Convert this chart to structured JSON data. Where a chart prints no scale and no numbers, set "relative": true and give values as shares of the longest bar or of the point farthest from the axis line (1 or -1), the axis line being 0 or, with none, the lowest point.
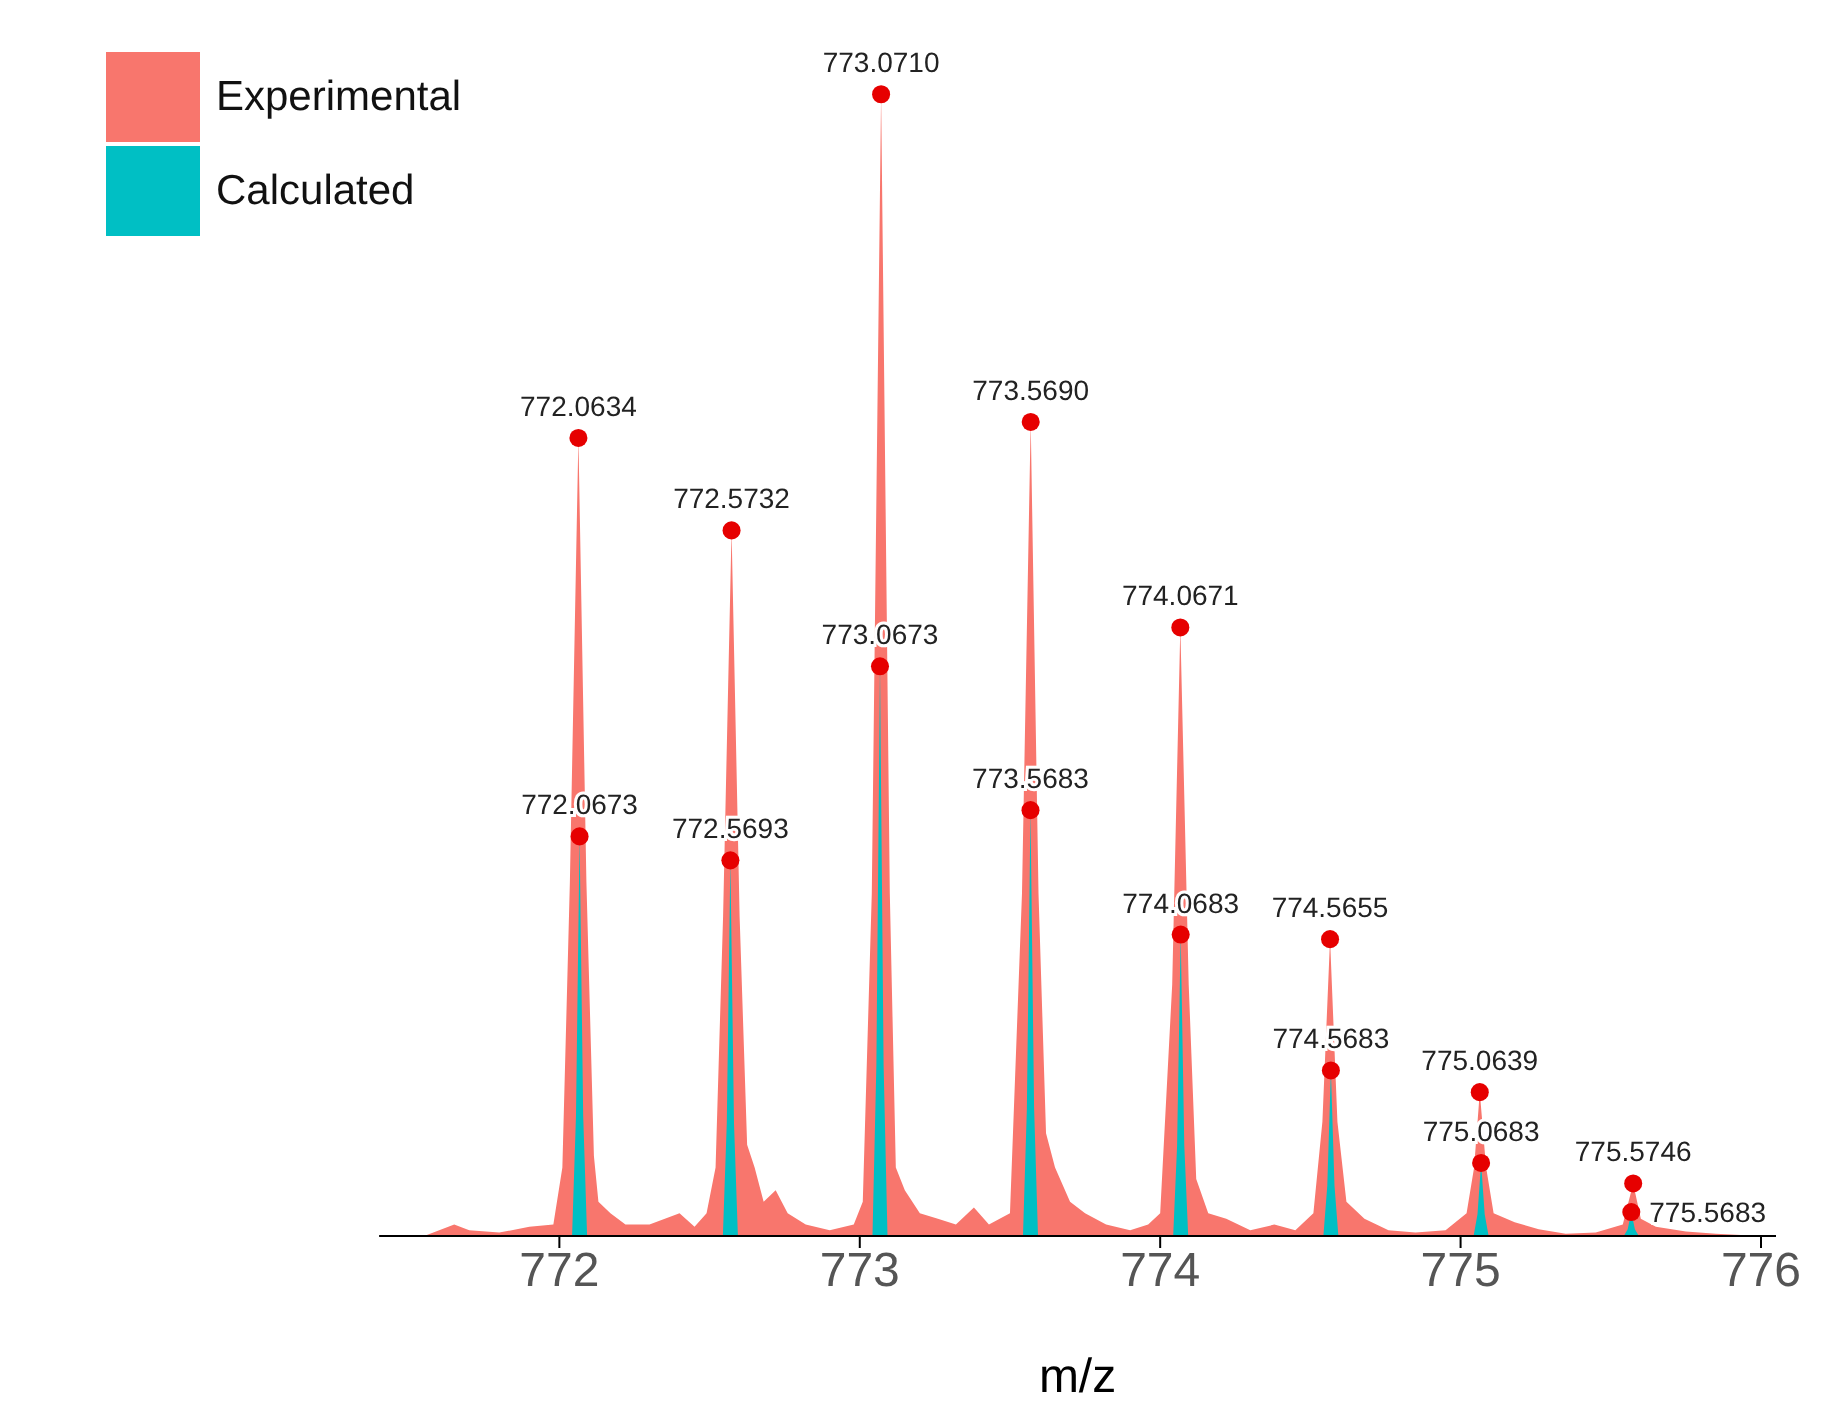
{
  "chart_data": {
    "type": "area",
    "relative": true,
    "xlabel": "m/z",
    "xlim": [
      771.4,
      776.05
    ],
    "xticks": [
      772,
      773,
      774,
      775,
      776
    ],
    "legend": "top left",
    "grid": false,
    "series": [
      {
        "name": "Experimental",
        "color": "#f8766d",
        "x": [
          771.55,
          771.65,
          771.7,
          771.8,
          771.9,
          771.98,
          772.01,
          772.035,
          772.0634,
          772.09,
          772.115,
          772.13,
          772.17,
          772.22,
          772.3,
          772.4,
          772.45,
          772.49,
          772.52,
          772.545,
          772.5732,
          772.6,
          772.625,
          772.65,
          772.68,
          772.72,
          772.76,
          772.82,
          772.9,
          772.98,
          773.01,
          773.04,
          773.071,
          773.1,
          773.12,
          773.15,
          773.2,
          773.26,
          773.32,
          773.38,
          773.43,
          773.5,
          773.54,
          773.569,
          773.595,
          773.62,
          773.65,
          773.7,
          773.75,
          773.82,
          773.9,
          773.96,
          774.0,
          774.04,
          774.0671,
          774.095,
          774.12,
          774.16,
          774.22,
          774.3,
          774.38,
          774.45,
          774.51,
          774.54,
          774.5655,
          774.59,
          774.62,
          774.68,
          774.76,
          774.85,
          774.95,
          775.02,
          775.045,
          775.0639,
          775.085,
          775.11,
          775.18,
          775.26,
          775.35,
          775.45,
          775.54,
          775.5746,
          775.6,
          775.65,
          775.75,
          775.85,
          776.0
        ],
        "values": [
          0,
          0.01,
          0.005,
          0.003,
          0.008,
          0.01,
          0.06,
          0.31,
          0.699,
          0.31,
          0.07,
          0.03,
          0.02,
          0.01,
          0.01,
          0.02,
          0.008,
          0.02,
          0.06,
          0.28,
          0.618,
          0.28,
          0.08,
          0.06,
          0.03,
          0.04,
          0.02,
          0.01,
          0.005,
          0.01,
          0.03,
          0.3,
          1,
          0.3,
          0.06,
          0.04,
          0.02,
          0.015,
          0.01,
          0.025,
          0.01,
          0.02,
          0.3,
          0.713,
          0.3,
          0.09,
          0.06,
          0.03,
          0.02,
          0.01,
          0.005,
          0.01,
          0.02,
          0.22,
          0.533,
          0.22,
          0.05,
          0.02,
          0.015,
          0.005,
          0.01,
          0.005,
          0.02,
          0.1,
          0.26,
          0.1,
          0.03,
          0.015,
          0.005,
          0.003,
          0.005,
          0.02,
          0.06,
          0.126,
          0.06,
          0.02,
          0.012,
          0.006,
          0.002,
          0.003,
          0.01,
          0.046,
          0.015,
          0.008,
          0.004,
          0.002,
          0
        ]
      },
      {
        "name": "Calculated",
        "color": "#00bfc4",
        "x": [
          771.55,
          772.0423,
          772.0553,
          772.0673,
          772.0793,
          772.0923,
          772.5443,
          772.5573,
          772.5693,
          772.5813,
          772.5943,
          773.0423,
          773.0553,
          773.0673,
          773.0793,
          773.0923,
          773.5433,
          773.5563,
          773.5683,
          773.5803,
          773.5933,
          774.0433,
          774.0563,
          774.0683,
          774.0803,
          774.0933,
          774.5433,
          774.5563,
          774.5683,
          774.5803,
          774.5933,
          775.0433,
          775.0563,
          775.0683,
          775.0803,
          775.0933,
          775.5433,
          775.5563,
          775.5683,
          775.5803,
          775.5933,
          776.0
        ],
        "values": [
          0,
          0,
          0.105,
          0.35,
          0.105,
          0,
          0,
          0.099,
          0.329,
          0.099,
          0,
          0,
          0.15,
          0.499,
          0.15,
          0,
          0,
          0.112,
          0.373,
          0.112,
          0,
          0,
          0.079,
          0.264,
          0.079,
          0,
          0,
          0.044,
          0.145,
          0.044,
          0,
          0,
          0.019,
          0.064,
          0.019,
          0,
          0,
          0.006,
          0.021,
          0.006,
          0,
          0
        ]
      },
      {
        "type": "scatter",
        "color": "#e60000",
        "marker": "circle",
        "x": [
          772.0634,
          772.5732,
          773.071,
          773.569,
          774.0671,
          774.5655,
          775.0639,
          775.5746
        ],
        "values": [
          0.699,
          0.618,
          1,
          0.713,
          0.533,
          0.26,
          0.126,
          0.046
        ]
      },
      {
        "type": "scatter",
        "color": "#e60000",
        "marker": "circle",
        "x": [
          772.0673,
          772.5693,
          773.0673,
          773.5683,
          774.0683,
          774.5683,
          775.0683,
          775.5683
        ],
        "values": [
          0.35,
          0.329,
          0.499,
          0.373,
          0.264,
          0.145,
          0.064,
          0.021
        ]
      }
    ],
    "annotations": [
      {
        "text": "772.0634",
        "x": 772.0634,
        "y": 0.699
      },
      {
        "text": "772.5732",
        "x": 772.5732,
        "y": 0.618
      },
      {
        "text": "773.0710",
        "x": 773.071,
        "y": 1
      },
      {
        "text": "773.5690",
        "x": 773.569,
        "y": 0.713
      },
      {
        "text": "774.0671",
        "x": 774.0671,
        "y": 0.533
      },
      {
        "text": "774.5655",
        "x": 774.5655,
        "y": 0.26
      },
      {
        "text": "775.0639",
        "x": 775.0639,
        "y": 0.126
      },
      {
        "text": "775.5746",
        "x": 775.5746,
        "y": 0.046
      },
      {
        "text": "772.0673",
        "x": 772.0673,
        "y": 0.35
      },
      {
        "text": "772.5693",
        "x": 772.5693,
        "y": 0.329
      },
      {
        "text": "773.0673",
        "x": 773.0673,
        "y": 0.499
      },
      {
        "text": "773.5683",
        "x": 773.5683,
        "y": 0.373
      },
      {
        "text": "774.0683",
        "x": 774.0683,
        "y": 0.264
      },
      {
        "text": "774.5683",
        "x": 774.5683,
        "y": 0.145
      },
      {
        "text": "775.0683",
        "x": 775.0683,
        "y": 0.064
      },
      {
        "text": "775.5683",
        "x": 775.5683,
        "y": 0.021
      }
    ]
  }
}
